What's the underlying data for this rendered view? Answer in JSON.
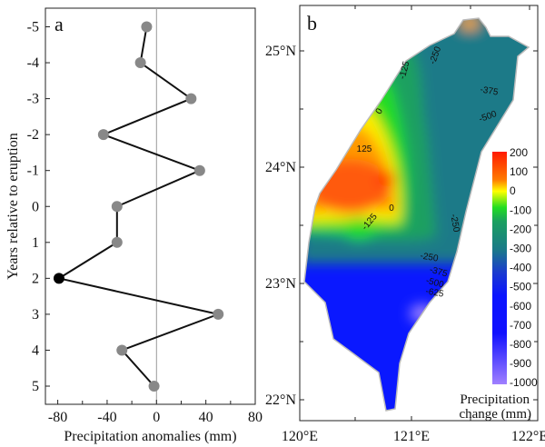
{
  "chart_data": [
    {
      "type": "line",
      "panel_label": "a",
      "xlabel": "Precipitation  anomalies (mm)",
      "ylabel": "Years relative to eruption",
      "xlim": [
        -90,
        80
      ],
      "ylim": [
        -5.5,
        5.5
      ],
      "y_inverted": true,
      "xticks": [
        -80,
        -40,
        0,
        40,
        80
      ],
      "yticks": [
        -5,
        -4,
        -3,
        -2,
        -1,
        0,
        1,
        2,
        3,
        4,
        5
      ],
      "reference_line_x": 0,
      "series": [
        {
          "name": "anomaly",
          "y": [
            -5,
            -4,
            -3,
            -2,
            -1,
            0,
            1,
            2,
            3,
            4,
            5
          ],
          "x": [
            -8,
            -13,
            28,
            -43,
            35,
            -32,
            -32,
            -79,
            50,
            -28,
            -2
          ],
          "highlight_index": 7,
          "color": "#888888",
          "highlight_color": "#000000"
        }
      ]
    },
    {
      "type": "heatmap",
      "panel_label": "b",
      "x_ticks": [
        "120°E",
        "121°E",
        "122°E"
      ],
      "y_ticks": [
        "25°N",
        "24°N",
        "23°N",
        "22°N"
      ],
      "colorbar": {
        "title_line1": "Precipitation",
        "title_line2": "change (mm)",
        "ticks": [
          "200",
          "100",
          "0",
          "-100",
          "-200",
          "-300",
          "-400",
          "-500",
          "-600",
          "-700",
          "-800",
          "-900",
          "-1000"
        ],
        "range": [
          -1000,
          200
        ]
      },
      "contour_labels": [
        "-250",
        "-125",
        "-375",
        "-500",
        "0",
        "125",
        "0",
        "-125",
        "-250",
        "-250",
        "-375",
        "-500",
        "-625"
      ]
    }
  ]
}
